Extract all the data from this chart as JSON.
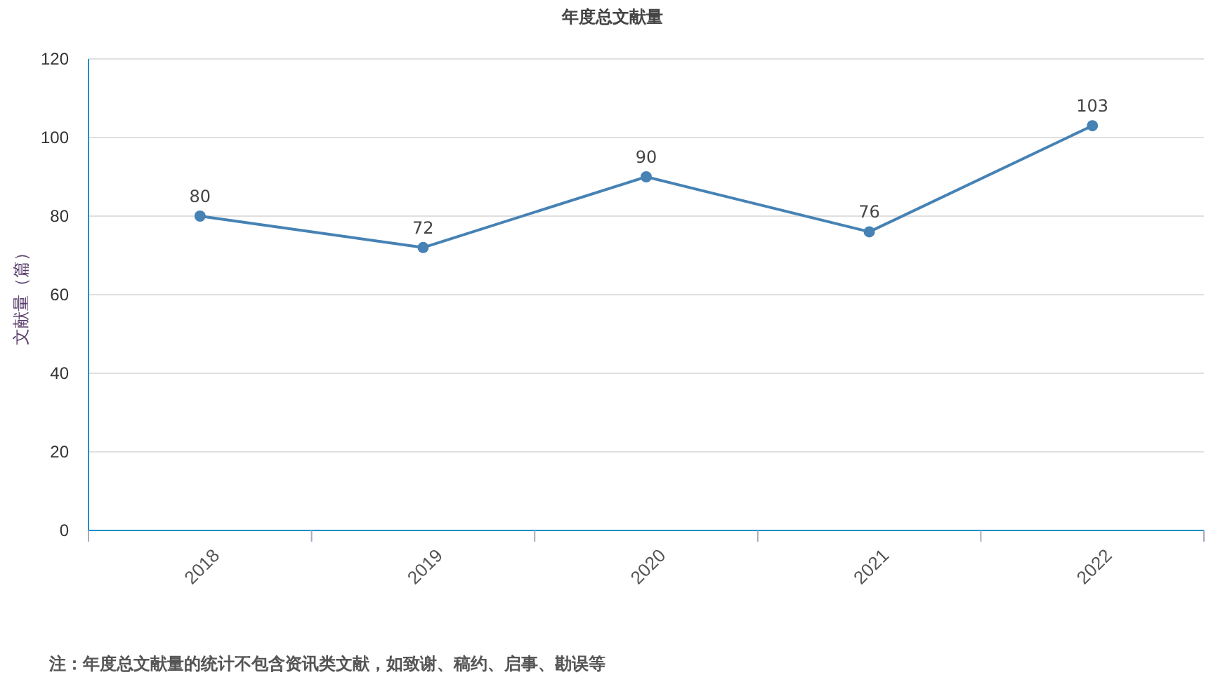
{
  "chart_data": {
    "type": "line",
    "title": "年度总文献量",
    "ylabel": "文献量（篇）",
    "categories": [
      "2018",
      "2019",
      "2020",
      "2021",
      "2022"
    ],
    "series": [
      {
        "color": "#4682b4",
        "values": [
          80,
          72,
          90,
          76,
          103
        ]
      }
    ],
    "ylim": [
      0,
      120
    ],
    "yticks": [
      0,
      20,
      40,
      60,
      80,
      100,
      120
    ],
    "grid": "y",
    "marker": "circle",
    "data_labels": true,
    "annotations": [
      "注：年度总文献量的统计不包含资讯类文献，如致谢、稿约、启事、勘误等"
    ]
  }
}
